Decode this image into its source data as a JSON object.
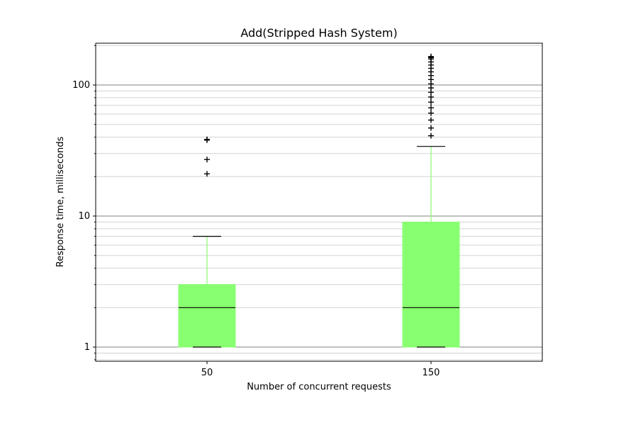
{
  "chart_data": {
    "type": "box",
    "title": "Add(Stripped Hash System)",
    "xlabel": "Number of concurrent requests",
    "ylabel": "Response time, milliseconds",
    "yscale": "log",
    "ylim": [
      0.8,
      210
    ],
    "yticks": [
      1,
      10,
      100
    ],
    "ytick_labels": [
      "1",
      "10",
      "100"
    ],
    "grid": "both-major-minor-y",
    "box_color": "#88ff70",
    "categories": [
      "50",
      "150"
    ],
    "boxes": [
      {
        "category": "50",
        "whisker_low": 1,
        "q1": 1,
        "median": 2,
        "q3": 3,
        "whisker_high": 7,
        "outliers": [
          21,
          27,
          38,
          38.5
        ]
      },
      {
        "category": "150",
        "whisker_low": 1,
        "q1": 1,
        "median": 2,
        "q3": 9,
        "whisker_high": 34,
        "outliers": [
          41,
          47,
          54,
          61,
          67,
          74,
          81,
          88,
          95,
          102,
          110,
          118,
          126,
          134,
          142,
          150,
          158,
          162,
          165
        ]
      }
    ]
  }
}
